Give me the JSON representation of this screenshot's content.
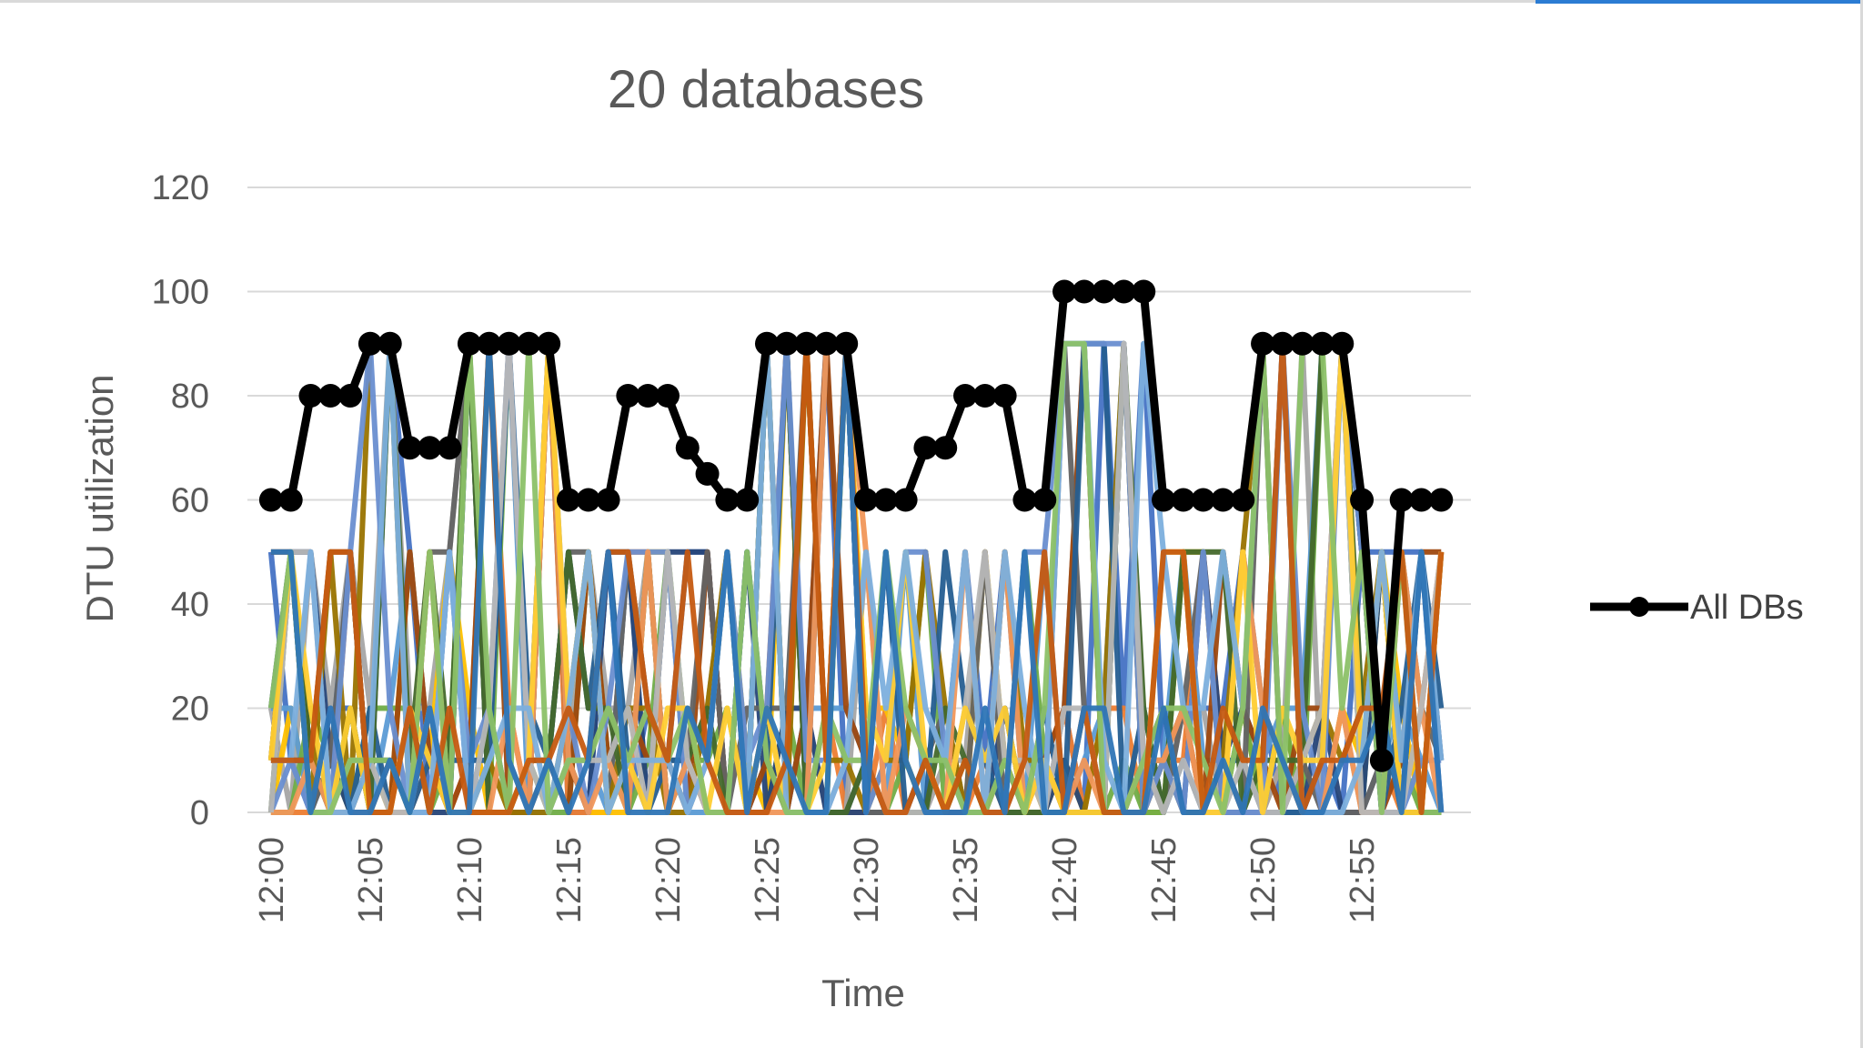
{
  "chart_data": {
    "type": "line",
    "title": "20 databases",
    "xlabel": "Time",
    "ylabel": "DTU utilization",
    "ylim": [
      0,
      120
    ],
    "yticks": [
      "0",
      "20",
      "40",
      "60",
      "80",
      "100",
      "120"
    ],
    "x_minutes": [
      0,
      1,
      2,
      3,
      4,
      5,
      6,
      7,
      8,
      9,
      10,
      11,
      12,
      13,
      14,
      15,
      16,
      17,
      18,
      19,
      20,
      21,
      22,
      23,
      24,
      25,
      26,
      27,
      28,
      29,
      30,
      31,
      32,
      33,
      34,
      35,
      36,
      37,
      38,
      39,
      40,
      41,
      42,
      43,
      44,
      45,
      46,
      47,
      48,
      49,
      50,
      51,
      52,
      53,
      54,
      55,
      56,
      57,
      58,
      59
    ],
    "xtick_labels": [
      "12:00",
      "12:05",
      "12:10",
      "12:15",
      "12:20",
      "12:25",
      "12:30",
      "12:35",
      "12:40",
      "12:45",
      "12:50",
      "12:55"
    ],
    "grid": true,
    "legend_position": "right",
    "series": [
      {
        "name": "All DBs",
        "color": "#000000",
        "values": [
          60,
          60,
          80,
          80,
          80,
          90,
          90,
          70,
          70,
          70,
          90,
          90,
          90,
          90,
          90,
          60,
          60,
          60,
          80,
          80,
          80,
          70,
          65,
          60,
          60,
          90,
          90,
          90,
          90,
          90,
          60,
          60,
          60,
          70,
          70,
          80,
          80,
          80,
          60,
          60,
          100,
          100,
          100,
          100,
          100,
          60,
          60,
          60,
          60,
          60,
          90,
          90,
          90,
          90,
          90,
          60,
          10,
          60,
          60,
          60
        ]
      }
    ],
    "background_series_colors": [
      "#4472c4",
      "#ed7d31",
      "#a5a5a5",
      "#ffc000",
      "#5b9bd5",
      "#70ad47",
      "#264478",
      "#9e480e",
      "#636363",
      "#997300",
      "#255e91",
      "#43682b",
      "#698ed0",
      "#f1975a",
      "#b7b7b7",
      "#ffcd33",
      "#7cafdd",
      "#8cc168",
      "#c55a11",
      "#2e75b6"
    ]
  }
}
